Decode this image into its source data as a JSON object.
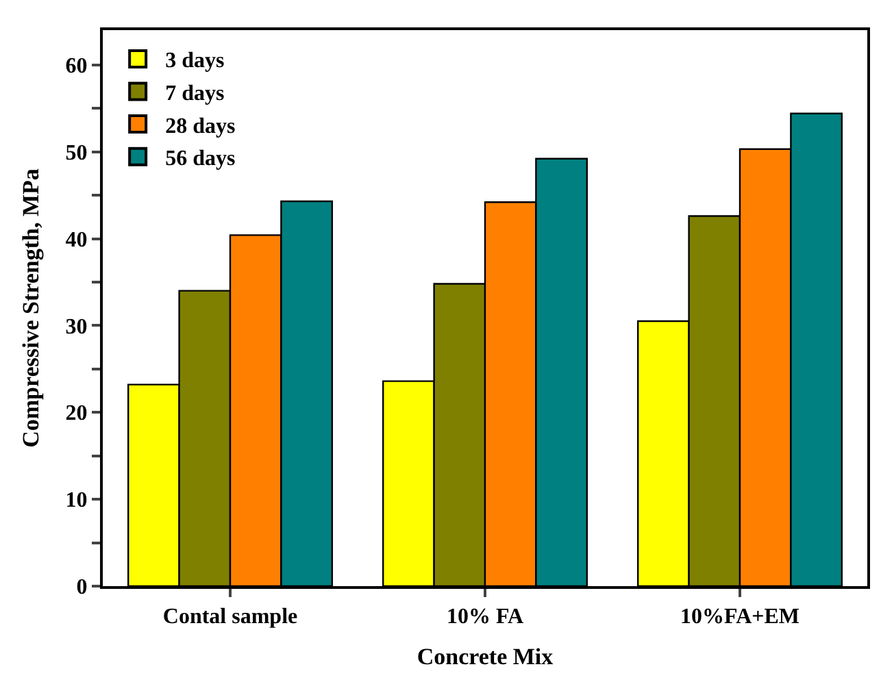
{
  "chart_data": {
    "type": "bar",
    "xlabel": "Concrete Mix",
    "ylabel": "Compressive Strength, MPa",
    "categories": [
      "Contal sample",
      "10% FA",
      "10%FA+EM"
    ],
    "series": [
      {
        "name": "3 days",
        "color": "#ffff00",
        "values": [
          23.2,
          23.6,
          30.5
        ]
      },
      {
        "name": "7 days",
        "color": "#808000",
        "values": [
          34.0,
          34.8,
          42.6
        ]
      },
      {
        "name": "28 days",
        "color": "#ff8000",
        "values": [
          40.4,
          44.2,
          50.3
        ]
      },
      {
        "name": "56 days",
        "color": "#008080",
        "values": [
          44.3,
          49.2,
          54.4
        ]
      }
    ],
    "ylim": [
      0,
      64
    ],
    "yticks": [
      0,
      {
        "value": 5,
        "label": null
      },
      10,
      {
        "value": 15,
        "label": null
      },
      20,
      {
        "value": 25,
        "label": null
      },
      30,
      {
        "value": 35,
        "label": null
      },
      40,
      {
        "value": 45,
        "label": null
      },
      50,
      {
        "value": 55,
        "label": null
      },
      60
    ],
    "legend": "top left"
  }
}
